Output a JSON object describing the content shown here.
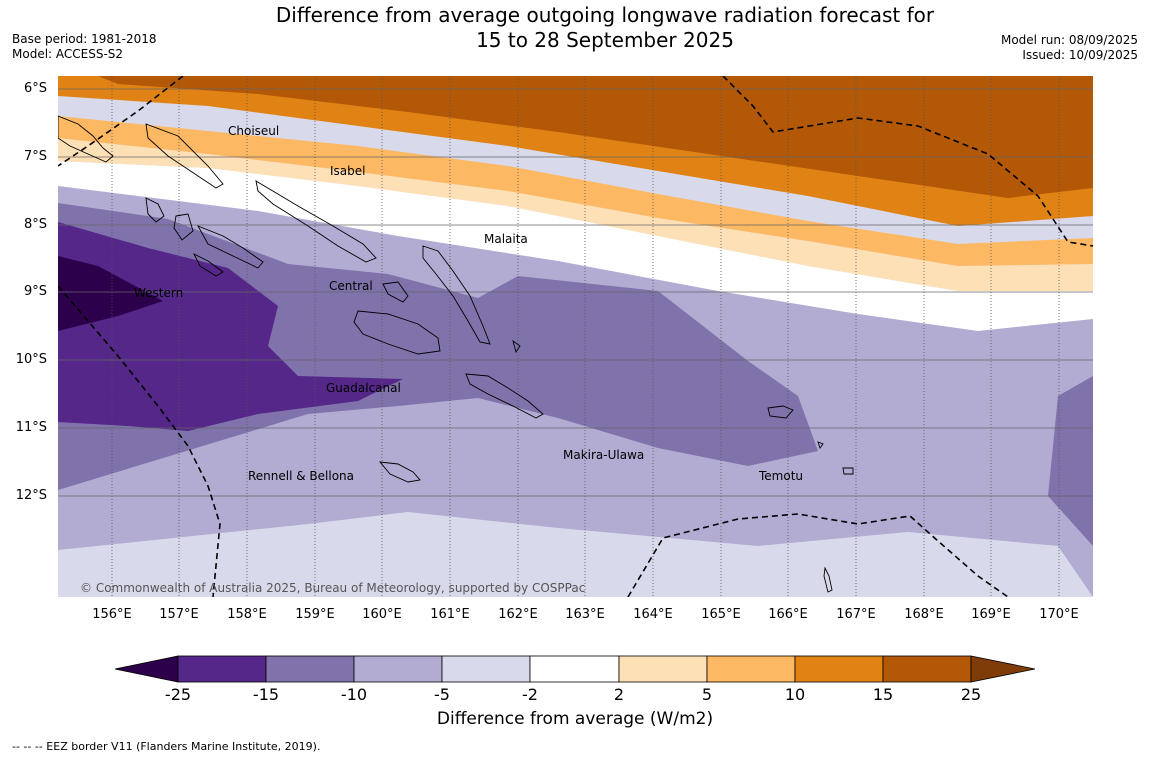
{
  "title_line1": "Difference from average outgoing longwave radiation forecast for",
  "title_line2": "15 to 28 September 2025",
  "base_period": "Base period: 1981-2018",
  "model": "Model: ACCESS-S2",
  "model_run": "Model run: 08/09/2025",
  "issued": "Issued: 10/09/2025",
  "lat_labels": [
    "6°S",
    "7°S",
    "8°S",
    "9°S",
    "10°S",
    "11°S",
    "12°S"
  ],
  "lon_labels": [
    "156°E",
    "157°E",
    "158°E",
    "159°E",
    "160°E",
    "161°E",
    "162°E",
    "163°E",
    "164°E",
    "165°E",
    "166°E",
    "167°E",
    "168°E",
    "169°E",
    "170°E"
  ],
  "places": [
    "Choiseul",
    "Isabel",
    "Malaita",
    "Western",
    "Central",
    "Guadalcanal",
    "Makira-Ulawa",
    "Rennell & Bellona",
    "Temotu"
  ],
  "copyright": "© Commonwealth of Australia 2025, Bureau of Meteorology, supported by COSPPac",
  "colorbar": {
    "ticks": [
      "-25",
      "-15",
      "-10",
      "-5",
      "-2",
      "2",
      "5",
      "10",
      "15",
      "25"
    ],
    "colors": [
      "#2d004b",
      "#542788",
      "#8073ac",
      "#b2abd2",
      "#d8daeb",
      "#ffffff",
      "#fee0b6",
      "#fdb863",
      "#e08214",
      "#b35806",
      "#7f3b08"
    ],
    "title": "Difference from average (W/m2)"
  },
  "footer": "--  --  -- EEZ border V11 (Flanders Marine Institute, 2019)."
}
